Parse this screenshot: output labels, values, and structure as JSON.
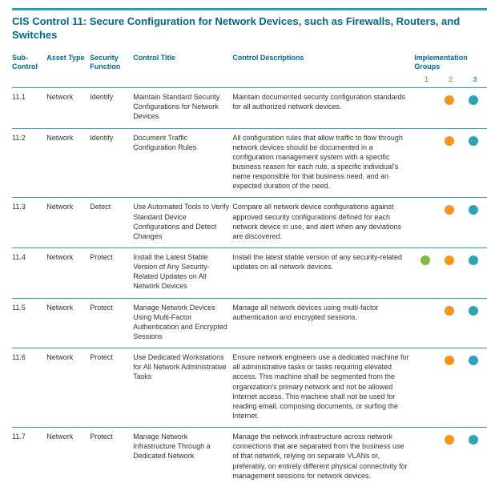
{
  "colors": {
    "topbar": "#2da3b8",
    "title": "#006a8e",
    "header_text": "#006a8e",
    "row_border": "#2da3b8",
    "group1_label": "#7fba42",
    "group2_label": "#f7941e",
    "group3_label": "#2da3b8",
    "dot_green": "#7fba42",
    "dot_orange": "#f7941e",
    "dot_teal": "#2da3b8"
  },
  "layout": {
    "title_fontsize": "13px",
    "dot_size": 12,
    "col_widths": {
      "sub": 40,
      "asset": 50,
      "func": 50,
      "title": 115,
      "desc": 210,
      "g": 28
    }
  },
  "heading": "CIS Control 11:  Secure Configuration for Network Devices, such as Firewalls, Routers, and Switches",
  "columns": {
    "sub": "Sub-Control",
    "asset": "Asset Type",
    "func": "Security Function",
    "title": "Control Title",
    "desc": "Control Descriptions",
    "groups": "Implementation Groups",
    "g1": "1",
    "g2": "2",
    "g3": "3"
  },
  "rows": [
    {
      "id": "11.1",
      "asset": "Network",
      "func": "Identify",
      "title": "Maintain Standard Security Configurations for Network Devices",
      "desc": "Maintain documented security configuration standards for all authorized network devices.",
      "g1": null,
      "g2": "orange",
      "g3": "teal"
    },
    {
      "id": "11.2",
      "asset": "Network",
      "func": "Identify",
      "title": "Document Traffic Configuration Rules",
      "desc": "All configuration rules that allow traffic to flow through network devices should be documented in a configuration management system with a specific business reason for each rule, a specific individual's name responsible for that business need, and an expected duration of the need.",
      "g1": null,
      "g2": "orange",
      "g3": "teal"
    },
    {
      "id": "11.3",
      "asset": "Network",
      "func": "Detect",
      "title": "Use Automated Tools to Verify Standard Device Configurations and Detect Changes",
      "desc": "Compare all network device configurations against approved security configurations defined for each network device in use, and alert when any deviations are discovered.",
      "g1": null,
      "g2": "orange",
      "g3": "teal"
    },
    {
      "id": "11.4",
      "asset": "Network",
      "func": "Protect",
      "title": "Install the Latest Stable Version of Any Security-Related Updates on All Network Devices",
      "desc": "Install the latest stable version of any security-related updates on all network devices.",
      "g1": "green",
      "g2": "orange",
      "g3": "teal"
    },
    {
      "id": "11.5",
      "asset": "Network",
      "func": "Protect",
      "title": "Manage Network Devices Using Multi-Factor Authentication and Encrypted Sessions",
      "desc": "Manage all network devices using multi-factor authentication and encrypted sessions.",
      "g1": null,
      "g2": "orange",
      "g3": "teal"
    },
    {
      "id": "11.6",
      "asset": "Network",
      "func": "Protect",
      "title": "Use Dedicated Workstations for All Network Administrative Tasks",
      "desc": "Ensure network engineers use a dedicated machine for all administrative tasks or tasks requiring elevated access. This machine shall be segmented from the organization's primary network and not be allowed Internet access. This machine shall not be used for reading email, composing documents, or surfing the Internet.",
      "g1": null,
      "g2": "orange",
      "g3": "teal"
    },
    {
      "id": "11.7",
      "asset": "Network",
      "func": "Protect",
      "title": "Manage Network Infrastructure Through a Dedicated Network",
      "desc": "Manage the network infrastructure across network connections that are separated from the business use of that network, relying on separate VLANs or, preferably, on entirely different physical connectivity for management sessions for network devices.",
      "g1": null,
      "g2": "orange",
      "g3": "teal"
    }
  ]
}
